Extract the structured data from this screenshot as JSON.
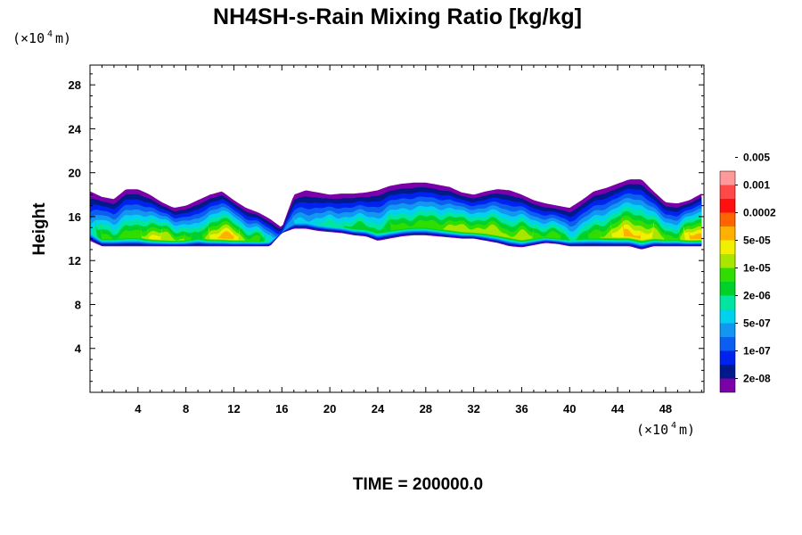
{
  "chart_data": {
    "type": "heatmap",
    "title": "NH4SH-s-Rain Mixing Ratio [kg/kg]",
    "ylabel": "Height",
    "xlabel": "",
    "x_unit": {
      "prefix": "(×10",
      "exp": "4",
      "suffix": " m)"
    },
    "y_unit": {
      "prefix": "(×10",
      "exp": "4",
      "suffix": " m)"
    },
    "xlim": [
      0,
      51.2
    ],
    "ylim": [
      0,
      29.8
    ],
    "x_ticks": [
      4,
      8,
      12,
      16,
      20,
      24,
      28,
      32,
      36,
      40,
      44,
      48
    ],
    "y_ticks": [
      4,
      8,
      12,
      16,
      20,
      24,
      28
    ],
    "colorbar": {
      "colors": [
        "#7a00a8",
        "#001a8c",
        "#0022ee",
        "#0a5ef0",
        "#1196f2",
        "#00d2ee",
        "#00e6a0",
        "#00d12a",
        "#2fdd00",
        "#a8e600",
        "#f0f000",
        "#ffb000",
        "#ff6400",
        "#ff1010",
        "#ff4848",
        "#ff9a9a"
      ],
      "labels": [
        "2e-08",
        "1e-07",
        "5e-07",
        "2e-06",
        "1e-05",
        "5e-05",
        "0.0002",
        "0.001",
        "0.005"
      ]
    },
    "layer": {
      "x": [
        0,
        1,
        2,
        3,
        4,
        5,
        6,
        7,
        8,
        9,
        10,
        11,
        12,
        13,
        14,
        15,
        16,
        17,
        18,
        19,
        20,
        21,
        22,
        23,
        24,
        25,
        26,
        27,
        28,
        29,
        30,
        31,
        32,
        33,
        34,
        35,
        36,
        37,
        38,
        39,
        40,
        41,
        42,
        43,
        44,
        45,
        46,
        47,
        48,
        49,
        50,
        51
      ],
      "top": [
        18.3,
        17.8,
        17.6,
        18.5,
        18.5,
        18.0,
        17.3,
        16.8,
        17.0,
        17.5,
        18.0,
        18.3,
        17.5,
        16.8,
        16.4,
        15.8,
        15.0,
        18.0,
        18.4,
        18.2,
        18.0,
        18.1,
        18.1,
        18.2,
        18.4,
        18.8,
        19.0,
        19.1,
        19.1,
        18.9,
        18.7,
        18.2,
        18.0,
        18.3,
        18.5,
        18.4,
        18.0,
        17.5,
        17.2,
        17.0,
        16.8,
        17.5,
        18.3,
        18.6,
        19.0,
        19.4,
        19.4,
        18.3,
        17.3,
        17.2,
        17.5,
        18.1
      ],
      "bottom": [
        13.8,
        13.3,
        13.3,
        13.3,
        13.3,
        13.3,
        13.3,
        13.3,
        13.3,
        13.3,
        13.3,
        13.3,
        13.3,
        13.3,
        13.3,
        13.3,
        14.5,
        14.9,
        14.9,
        14.7,
        14.6,
        14.5,
        14.3,
        14.2,
        13.8,
        14.0,
        14.2,
        14.3,
        14.3,
        14.2,
        14.1,
        14.0,
        14.0,
        13.8,
        13.6,
        13.3,
        13.2,
        13.4,
        13.6,
        13.5,
        13.3,
        13.3,
        13.3,
        13.3,
        13.3,
        13.3,
        13.0,
        13.3,
        13.3,
        13.3,
        13.3,
        13.3
      ],
      "intensity": [
        5.5,
        8.5,
        8.0,
        8.5,
        8.5,
        10.5,
        10.0,
        9.5,
        9.0,
        7.0,
        10.5,
        11.5,
        11.0,
        9.0,
        8.5,
        6.0,
        4.0,
        5.0,
        5.5,
        6.0,
        6.5,
        7.0,
        7.5,
        7.5,
        7.5,
        8.0,
        8.5,
        8.5,
        8.5,
        9.0,
        9.5,
        9.5,
        10.0,
        9.5,
        10.0,
        9.0,
        10.0,
        9.0,
        8.5,
        8.5,
        7.0,
        7.5,
        8.5,
        9.5,
        10.5,
        11.5,
        11.0,
        10.0,
        9.0,
        8.5,
        11.0,
        12.0
      ]
    },
    "grid": false,
    "legend": "right"
  },
  "footer": {
    "time_label": "TIME = 200000.0"
  }
}
